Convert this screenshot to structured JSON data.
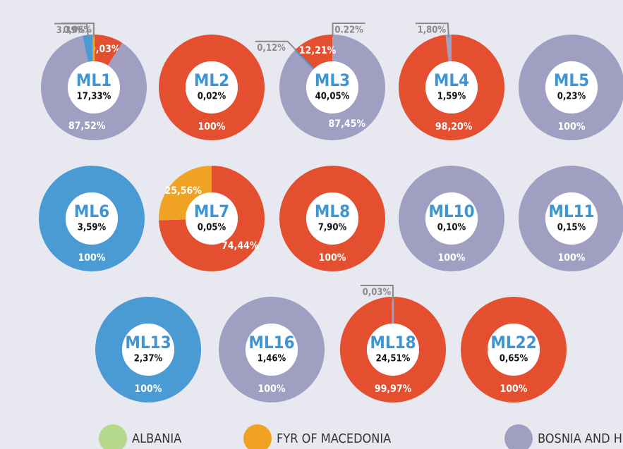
{
  "chart_data": [
    {
      "type": "donut",
      "title": "ML1",
      "subtitle": "17,33%",
      "values": [
        9.03,
        87.52,
        3.39,
        0.06
      ],
      "value_labels": [
        "9,03%",
        "87,52%",
        "3.39%",
        "0,06%"
      ],
      "colors": [
        "#e4502f",
        "#a09fc2",
        "#4a9ad4",
        "#f0a323"
      ]
    },
    {
      "type": "donut",
      "title": "ML2",
      "subtitle": "0,02%",
      "values": [
        100
      ],
      "value_labels": [
        "100%"
      ],
      "colors": [
        "#e4502f"
      ]
    },
    {
      "type": "donut",
      "title": "ML3",
      "subtitle": "40,05%",
      "values": [
        0.22,
        87.45,
        0.12,
        12.21
      ],
      "value_labels": [
        "0.22%",
        "87,45%",
        "0,12%",
        "12,21%"
      ],
      "colors": [
        "#f0a323",
        "#a09fc2",
        "#4a9ad4",
        "#e4502f"
      ]
    },
    {
      "type": "donut",
      "title": "ML4",
      "subtitle": "1,59%",
      "values": [
        98.2,
        1.8
      ],
      "value_labels": [
        "98,20%",
        "1,80%"
      ],
      "colors": [
        "#e4502f",
        "#a09fc2"
      ]
    },
    {
      "type": "donut",
      "title": "ML5",
      "subtitle": "0,23%",
      "values": [
        100
      ],
      "value_labels": [
        "100%"
      ],
      "colors": [
        "#a09fc2"
      ]
    },
    {
      "type": "donut",
      "title": "ML6",
      "subtitle": "3,59%",
      "values": [
        100
      ],
      "value_labels": [
        "100%"
      ],
      "colors": [
        "#4a9ad4"
      ]
    },
    {
      "type": "donut",
      "title": "ML7",
      "subtitle": "0,05%",
      "values": [
        74.44,
        25.56
      ],
      "value_labels": [
        "74,44%",
        "25,56%"
      ],
      "colors": [
        "#e4502f",
        "#f0a323"
      ]
    },
    {
      "type": "donut",
      "title": "ML8",
      "subtitle": "7,90%",
      "values": [
        100
      ],
      "value_labels": [
        "100%"
      ],
      "colors": [
        "#e4502f"
      ]
    },
    {
      "type": "donut",
      "title": "ML10",
      "subtitle": "0,10%",
      "values": [
        100
      ],
      "value_labels": [
        "100%"
      ],
      "colors": [
        "#a09fc2"
      ]
    },
    {
      "type": "donut",
      "title": "ML11",
      "subtitle": "0,15%",
      "values": [
        100
      ],
      "value_labels": [
        "100%"
      ],
      "colors": [
        "#a09fc2"
      ]
    },
    {
      "type": "donut",
      "title": "ML13",
      "subtitle": "2,37%",
      "values": [
        100
      ],
      "value_labels": [
        "100%"
      ],
      "colors": [
        "#4a9ad4"
      ]
    },
    {
      "type": "donut",
      "title": "ML16",
      "subtitle": "1,46%",
      "values": [
        100
      ],
      "value_labels": [
        "100%"
      ],
      "colors": [
        "#a09fc2"
      ]
    },
    {
      "type": "donut",
      "title": "ML18",
      "subtitle": "24,51%",
      "values": [
        99.97,
        0.03
      ],
      "value_labels": [
        "99,97%",
        "0,03%"
      ],
      "colors": [
        "#e4502f",
        "#a09fc2"
      ]
    },
    {
      "type": "donut",
      "title": "ML22",
      "subtitle": "0,65%",
      "values": [
        100
      ],
      "value_labels": [
        "100%"
      ],
      "colors": [
        "#e4502f"
      ]
    }
  ],
  "legend": [
    {
      "name": "ALBANIA",
      "color": "#b5d98a"
    },
    {
      "name": "FYR OF MACEDONIA",
      "color": "#f0a323"
    },
    {
      "name": "BOSNIA AND H",
      "color": "#a09fc2"
    }
  ]
}
